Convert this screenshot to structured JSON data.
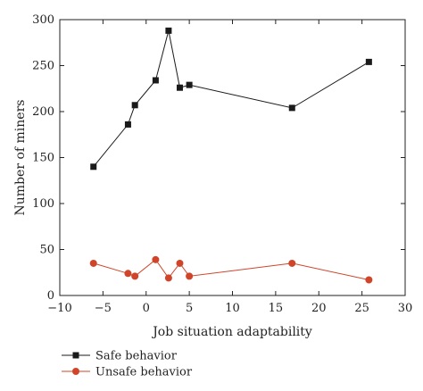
{
  "chart_data": {
    "type": "line",
    "xlabel": "Job situation adaptability",
    "ylabel": "Number of miners",
    "xlim": [
      -10,
      30
    ],
    "ylim": [
      0,
      300
    ],
    "xticks": [
      "−10",
      "−5",
      "0",
      "5",
      "10",
      "15",
      "20",
      "25",
      "30"
    ],
    "yticks": [
      "0",
      "50",
      "100",
      "150",
      "200",
      "250",
      "300"
    ],
    "grid": false,
    "legend_position": "bottom-left",
    "series": [
      {
        "name": "Safe behavior",
        "color": "#1a1a1a",
        "marker": "square",
        "x": [
          -6.1,
          -2.1,
          -1.3,
          1.1,
          2.6,
          3.9,
          5.0,
          16.9,
          25.8
        ],
        "y": [
          140,
          186,
          207,
          234,
          288,
          226,
          229,
          204,
          254
        ]
      },
      {
        "name": "Unsafe behavior",
        "color": "#d0452a",
        "marker": "circle",
        "x": [
          -6.1,
          -2.1,
          -1.3,
          1.1,
          2.6,
          3.9,
          5.0,
          16.9,
          25.8
        ],
        "y": [
          35,
          24,
          21,
          39,
          19,
          35,
          21,
          35,
          17
        ]
      }
    ]
  }
}
